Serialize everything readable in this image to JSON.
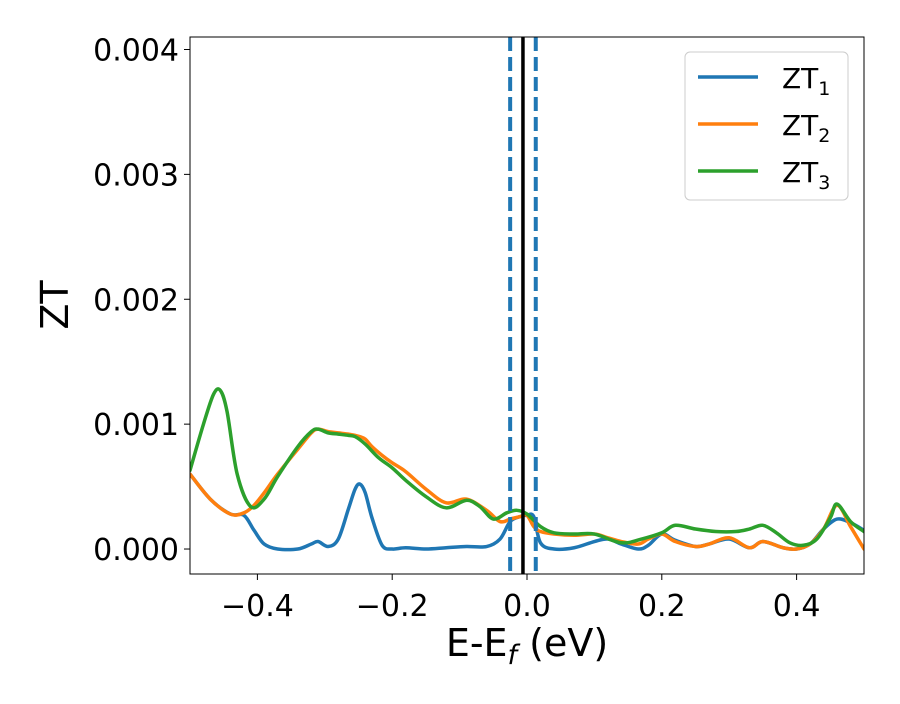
{
  "chart_data": {
    "type": "line",
    "xlabel": "E-E_f (eV)",
    "xlabel_main": "E-E",
    "xlabel_sub": "f",
    "xlabel_rest": " (eV)",
    "ylabel": "ZT",
    "xlim": [
      -0.5,
      0.5
    ],
    "ylim": [
      -0.0002,
      0.0041
    ],
    "xticks": [
      -0.4,
      -0.2,
      0.0,
      0.2,
      0.4
    ],
    "xtick_labels": [
      "−0.4",
      "−0.2",
      "0.0",
      "0.2",
      "0.4"
    ],
    "yticks": [
      0.0,
      0.001,
      0.002,
      0.003,
      0.004
    ],
    "ytick_labels": [
      "0.000",
      "0.001",
      "0.002",
      "0.003",
      "0.004"
    ],
    "grid": false,
    "legend": {
      "position": "top-right",
      "entries": [
        {
          "base": "ZT",
          "sub": "1",
          "color": "#1f77b4"
        },
        {
          "base": "ZT",
          "sub": "2",
          "color": "#ff7f0e"
        },
        {
          "base": "ZT",
          "sub": "3",
          "color": "#2ca02c"
        }
      ]
    },
    "vlines": [
      {
        "x": -0.025,
        "style": "dashed",
        "color": "#1f77b4"
      },
      {
        "x": 0.013,
        "style": "dashed",
        "color": "#1f77b4"
      },
      {
        "x": -0.006,
        "style": "solid",
        "color": "#000000"
      }
    ],
    "series": [
      {
        "name": "ZT_1",
        "color": "#1f77b4",
        "x": [
          -0.5,
          -0.47,
          -0.44,
          -0.42,
          -0.405,
          -0.39,
          -0.37,
          -0.34,
          -0.32,
          -0.31,
          -0.295,
          -0.28,
          -0.265,
          -0.255,
          -0.248,
          -0.24,
          -0.23,
          -0.215,
          -0.2,
          -0.18,
          -0.15,
          -0.12,
          -0.09,
          -0.06,
          -0.04,
          -0.025,
          -0.01,
          0.0,
          0.01,
          0.02,
          0.04,
          0.07,
          0.1,
          0.12,
          0.14,
          0.165,
          0.18,
          0.2,
          0.22,
          0.25,
          0.27,
          0.3,
          0.33,
          0.35,
          0.38,
          0.4,
          0.42,
          0.44,
          0.46,
          0.48,
          0.5
        ],
        "y": [
          0.0006,
          0.0004,
          0.00028,
          0.00027,
          0.00015,
          4e-05,
          0.0,
          0.0,
          4e-05,
          6e-05,
          2e-05,
          8e-05,
          0.00032,
          0.00048,
          0.00052,
          0.00045,
          0.00025,
          3e-05,
          0.0,
          1e-05,
          0.0,
          1e-05,
          2e-05,
          2e-05,
          8e-05,
          0.00022,
          0.00026,
          0.00027,
          0.00026,
          5e-05,
          0.0,
          1e-05,
          6e-05,
          8e-05,
          4e-05,
          0.0,
          3e-05,
          0.00012,
          7e-05,
          2e-05,
          4e-05,
          8e-05,
          1e-05,
          6e-05,
          1e-05,
          0.0,
          4e-05,
          0.00016,
          0.00024,
          0.00021,
          0.00015
        ]
      },
      {
        "name": "ZT_2",
        "color": "#ff7f0e",
        "x": [
          -0.5,
          -0.47,
          -0.44,
          -0.42,
          -0.405,
          -0.39,
          -0.37,
          -0.34,
          -0.32,
          -0.31,
          -0.295,
          -0.28,
          -0.265,
          -0.255,
          -0.248,
          -0.24,
          -0.23,
          -0.215,
          -0.2,
          -0.18,
          -0.15,
          -0.12,
          -0.09,
          -0.06,
          -0.04,
          -0.025,
          -0.01,
          0.0,
          0.01,
          0.02,
          0.04,
          0.07,
          0.1,
          0.12,
          0.14,
          0.165,
          0.18,
          0.2,
          0.22,
          0.25,
          0.27,
          0.3,
          0.33,
          0.35,
          0.38,
          0.4,
          0.42,
          0.44,
          0.46,
          0.48,
          0.5
        ],
        "y": [
          0.0006,
          0.0004,
          0.00028,
          0.00029,
          0.00035,
          0.00045,
          0.0006,
          0.0008,
          0.00093,
          0.00096,
          0.00094,
          0.00093,
          0.00092,
          0.00091,
          0.0009,
          0.00088,
          0.00082,
          0.00075,
          0.00069,
          0.00062,
          0.00048,
          0.00037,
          0.0004,
          0.00031,
          0.00022,
          0.00024,
          0.00026,
          0.00027,
          0.00018,
          0.00014,
          0.00012,
          0.00011,
          0.00012,
          9e-05,
          6e-05,
          4e-05,
          8e-05,
          0.00012,
          6e-05,
          2e-05,
          4e-05,
          9e-05,
          1e-05,
          6e-05,
          1e-05,
          0.0,
          4e-05,
          0.00016,
          0.00035,
          0.00018,
          0.0
        ]
      },
      {
        "name": "ZT_3",
        "color": "#2ca02c",
        "x": [
          -0.5,
          -0.48,
          -0.465,
          -0.455,
          -0.445,
          -0.43,
          -0.41,
          -0.39,
          -0.37,
          -0.34,
          -0.32,
          -0.31,
          -0.295,
          -0.28,
          -0.265,
          -0.255,
          -0.24,
          -0.22,
          -0.2,
          -0.18,
          -0.15,
          -0.12,
          -0.09,
          -0.07,
          -0.05,
          -0.03,
          -0.015,
          0.0,
          0.02,
          0.04,
          0.07,
          0.1,
          0.14,
          0.17,
          0.2,
          0.22,
          0.25,
          0.28,
          0.31,
          0.33,
          0.35,
          0.37,
          0.39,
          0.41,
          0.43,
          0.45,
          0.46,
          0.48,
          0.5
        ],
        "y": [
          0.00063,
          0.001,
          0.00124,
          0.00127,
          0.0011,
          0.0006,
          0.00034,
          0.0004,
          0.00058,
          0.00082,
          0.00094,
          0.00096,
          0.00093,
          0.00092,
          0.00091,
          0.0009,
          0.00084,
          0.00073,
          0.00065,
          0.00055,
          0.00042,
          0.00033,
          0.00039,
          0.00034,
          0.00024,
          0.00029,
          0.00031,
          0.00028,
          0.00018,
          0.00013,
          0.00012,
          0.00012,
          5e-05,
          8e-05,
          0.00013,
          0.00019,
          0.00016,
          0.00014,
          0.00014,
          0.00016,
          0.00019,
          0.00013,
          5e-05,
          3e-05,
          8e-05,
          0.00025,
          0.00036,
          0.00022,
          0.00014
        ]
      }
    ]
  }
}
